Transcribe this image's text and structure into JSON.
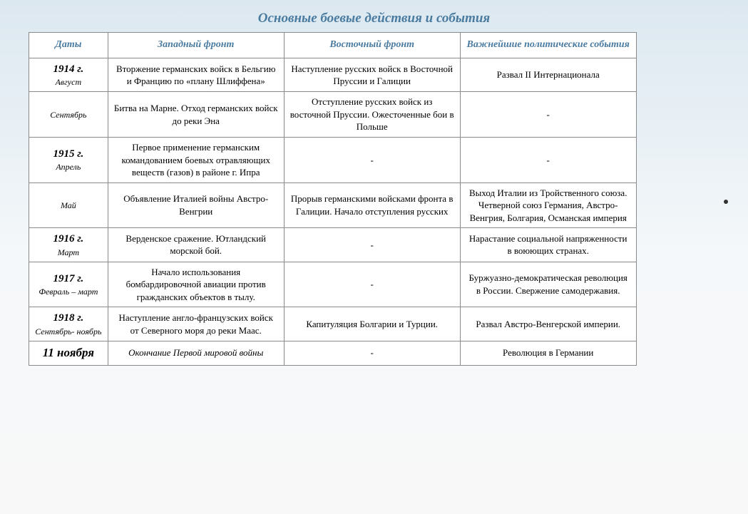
{
  "document": {
    "title": "Основные боевые действия и события",
    "background_gradient_top": "#dce8f0",
    "background_gradient_bottom": "#f8f8f8"
  },
  "table": {
    "border_color": "#8a8a8a",
    "header_color": "#4a7ba0",
    "columns": [
      {
        "label": "Даты",
        "width_pct": 13
      },
      {
        "label": "Западный фронт",
        "width_pct": 29
      },
      {
        "label": "Восточный фронт",
        "width_pct": 29
      },
      {
        "label": "Важнейшие политические события",
        "width_pct": 29
      }
    ],
    "rows": [
      {
        "date_year": "1914 г.",
        "date_month": "Август",
        "west": "Вторжение германских войск в Бельгию и Францию по «плану Шлиффена»",
        "east": "Наступление русских войск в Восточной Пруссии и Галиции",
        "polit": "Развал II Интернационала"
      },
      {
        "date_year": "",
        "date_month": "Сентябрь",
        "west": "Битва на Марне. Отход германских войск до реки Эна",
        "east": "Отступление русских войск из восточной Пруссии. Ожесточенные бои в Польше",
        "polit": "-"
      },
      {
        "date_year": "1915 г.",
        "date_month": "Апрель",
        "west": "Первое применение германским командованием боевых отравляющих веществ (газов) в районе г. Ипра",
        "east": "-",
        "polit": "-"
      },
      {
        "date_year": "",
        "date_month": "Май",
        "west": "Объявление Италией войны Австро-Венгрии",
        "east": "Прорыв германскими войсками фронта в Галиции. Начало отступления русских",
        "polit": "Выход Италии из Тройственного союза. Четверной союз Германия, Австро-Венгрия, Болгария, Османская империя"
      },
      {
        "date_year": "1916 г.",
        "date_month": "Март",
        "west": "Верденское сражение. Ютландский морской бой.",
        "east": "-",
        "polit": "Нарастание социальной напряженности в воюющих странах."
      },
      {
        "date_year": "1917 г.",
        "date_month": "Февраль – март",
        "west": "Начало использования бомбардировочной авиации против гражданских объектов в тылу.",
        "east": "-",
        "polit": "Буржуазно-демократическая революция в России. Свержение самодержавия."
      },
      {
        "date_year": "1918 г.",
        "date_month": "Сентябрь- ноябрь",
        "west": "Наступление англо-французских войск от Северного моря до реки Маас.",
        "east": "Капитуляция Болгарии и Турции.",
        "polit": "Развал Австро-Венгерской империи."
      },
      {
        "date_year": "11 ноября",
        "date_month": "",
        "west": "Окончание Первой мировой войны",
        "east": "-",
        "polit": "Революция в Германии",
        "is_final": true
      }
    ]
  }
}
